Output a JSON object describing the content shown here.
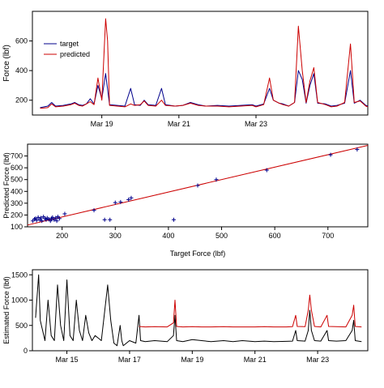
{
  "colors": {
    "target": "#00008b",
    "predicted": "#cc0000",
    "estimated": "#000000",
    "fit_line": "#cc0000",
    "axis": "#000000"
  },
  "chart_data": [
    {
      "type": "line",
      "ylabel": "Force (lbf)",
      "ylim": [
        100,
        800
      ],
      "yticks": [
        200,
        400,
        600
      ],
      "xlim": [
        17.2,
        25.9
      ],
      "xticks": [
        {
          "x": 19,
          "label": "Mar 19"
        },
        {
          "x": 21,
          "label": "Mar 21"
        },
        {
          "x": 23,
          "label": "Mar 23"
        }
      ],
      "legend": {
        "position": "top-left",
        "entries": [
          "target",
          "predicted"
        ]
      },
      "series": [
        {
          "name": "target",
          "color": "#00008b",
          "points": [
            [
              17.4,
              150
            ],
            [
              17.6,
              160
            ],
            [
              17.7,
              185
            ],
            [
              17.8,
              160
            ],
            [
              18.0,
              165
            ],
            [
              18.2,
              175
            ],
            [
              18.3,
              185
            ],
            [
              18.4,
              170
            ],
            [
              18.5,
              165
            ],
            [
              18.6,
              175
            ],
            [
              18.7,
              210
            ],
            [
              18.8,
              175
            ],
            [
              18.9,
              300
            ],
            [
              19.0,
              210
            ],
            [
              19.1,
              380
            ],
            [
              19.2,
              170
            ],
            [
              19.4,
              165
            ],
            [
              19.6,
              160
            ],
            [
              19.75,
              280
            ],
            [
              19.85,
              170
            ],
            [
              20.0,
              165
            ],
            [
              20.1,
              200
            ],
            [
              20.2,
              170
            ],
            [
              20.4,
              165
            ],
            [
              20.55,
              280
            ],
            [
              20.65,
              170
            ],
            [
              20.9,
              160
            ],
            [
              21.1,
              165
            ],
            [
              21.3,
              185
            ],
            [
              21.5,
              170
            ],
            [
              21.7,
              160
            ],
            [
              22.0,
              165
            ],
            [
              22.3,
              160
            ],
            [
              22.6,
              165
            ],
            [
              22.9,
              170
            ],
            [
              23.0,
              160
            ],
            [
              23.2,
              175
            ],
            [
              23.35,
              280
            ],
            [
              23.45,
              200
            ],
            [
              23.6,
              180
            ],
            [
              23.7,
              175
            ],
            [
              23.85,
              160
            ],
            [
              24.0,
              185
            ],
            [
              24.1,
              400
            ],
            [
              24.2,
              340
            ],
            [
              24.3,
              180
            ],
            [
              24.4,
              300
            ],
            [
              24.5,
              380
            ],
            [
              24.6,
              180
            ],
            [
              24.8,
              175
            ],
            [
              24.95,
              160
            ],
            [
              25.1,
              165
            ],
            [
              25.3,
              180
            ],
            [
              25.45,
              400
            ],
            [
              25.55,
              180
            ],
            [
              25.7,
              200
            ],
            [
              25.85,
              165
            ],
            [
              25.9,
              160
            ]
          ]
        },
        {
          "name": "predicted",
          "color": "#cc0000",
          "points": [
            [
              17.4,
              145
            ],
            [
              17.6,
              150
            ],
            [
              17.7,
              175
            ],
            [
              17.8,
              155
            ],
            [
              18.0,
              160
            ],
            [
              18.2,
              170
            ],
            [
              18.3,
              180
            ],
            [
              18.4,
              165
            ],
            [
              18.5,
              160
            ],
            [
              18.6,
              175
            ],
            [
              18.7,
              190
            ],
            [
              18.8,
              170
            ],
            [
              18.9,
              350
            ],
            [
              19.0,
              200
            ],
            [
              19.1,
              750
            ],
            [
              19.15,
              600
            ],
            [
              19.2,
              165
            ],
            [
              19.4,
              160
            ],
            [
              19.6,
              155
            ],
            [
              19.75,
              175
            ],
            [
              19.85,
              165
            ],
            [
              20.0,
              170
            ],
            [
              20.1,
              195
            ],
            [
              20.2,
              165
            ],
            [
              20.4,
              160
            ],
            [
              20.55,
              200
            ],
            [
              20.65,
              165
            ],
            [
              20.9,
              160
            ],
            [
              21.1,
              165
            ],
            [
              21.3,
              180
            ],
            [
              21.5,
              165
            ],
            [
              21.7,
              160
            ],
            [
              22.0,
              160
            ],
            [
              22.3,
              155
            ],
            [
              22.6,
              160
            ],
            [
              22.9,
              165
            ],
            [
              23.0,
              155
            ],
            [
              23.2,
              170
            ],
            [
              23.35,
              350
            ],
            [
              23.45,
              200
            ],
            [
              23.6,
              180
            ],
            [
              23.7,
              170
            ],
            [
              23.85,
              160
            ],
            [
              24.0,
              185
            ],
            [
              24.1,
              700
            ],
            [
              24.2,
              400
            ],
            [
              24.3,
              185
            ],
            [
              24.4,
              330
            ],
            [
              24.5,
              420
            ],
            [
              24.6,
              185
            ],
            [
              24.8,
              170
            ],
            [
              24.95,
              155
            ],
            [
              25.1,
              160
            ],
            [
              25.3,
              185
            ],
            [
              25.45,
              580
            ],
            [
              25.55,
              185
            ],
            [
              25.7,
              195
            ],
            [
              25.85,
              160
            ],
            [
              25.9,
              155
            ]
          ]
        }
      ]
    },
    {
      "type": "scatter",
      "xlabel": "Target Force (lbf)",
      "ylabel": "Predicted Force (lbf)",
      "xlim": [
        135,
        775
      ],
      "ylim": [
        100,
        800
      ],
      "xticks": [
        200,
        300,
        400,
        500,
        600,
        700
      ],
      "yticks": [
        100,
        200,
        300,
        400,
        500,
        600,
        700
      ],
      "fit_line": [
        [
          135,
          115
        ],
        [
          775,
          790
        ]
      ],
      "points": [
        [
          145,
          150
        ],
        [
          148,
          165
        ],
        [
          150,
          170
        ],
        [
          152,
          155
        ],
        [
          155,
          180
        ],
        [
          158,
          160
        ],
        [
          160,
          175
        ],
        [
          162,
          150
        ],
        [
          165,
          185
        ],
        [
          168,
          170
        ],
        [
          170,
          160
        ],
        [
          172,
          175
        ],
        [
          175,
          165
        ],
        [
          178,
          150
        ],
        [
          180,
          170
        ],
        [
          182,
          180
        ],
        [
          185,
          160
        ],
        [
          188,
          175
        ],
        [
          190,
          150
        ],
        [
          192,
          185
        ],
        [
          195,
          170
        ],
        [
          205,
          210
        ],
        [
          260,
          240
        ],
        [
          280,
          160
        ],
        [
          290,
          160
        ],
        [
          300,
          305
        ],
        [
          310,
          310
        ],
        [
          325,
          330
        ],
        [
          330,
          345
        ],
        [
          410,
          160
        ],
        [
          455,
          450
        ],
        [
          490,
          500
        ],
        [
          585,
          580
        ],
        [
          705,
          710
        ],
        [
          755,
          755
        ]
      ]
    },
    {
      "type": "line",
      "ylabel": "Estimated Force (lbf)",
      "ylim": [
        0,
        1600
      ],
      "yticks": [
        0,
        500,
        1000,
        1500
      ],
      "xlim": [
        13.9,
        24.6
      ],
      "xticks": [
        {
          "x": 15,
          "label": "Mar 15"
        },
        {
          "x": 17,
          "label": "Mar 17"
        },
        {
          "x": 19,
          "label": "Mar 19"
        },
        {
          "x": 21,
          "label": "Mar 21"
        },
        {
          "x": 23,
          "label": "Mar 23"
        }
      ],
      "series": [
        {
          "color": "#000000",
          "points": [
            [
              14.0,
              650
            ],
            [
              14.1,
              1500
            ],
            [
              14.15,
              600
            ],
            [
              14.3,
              200
            ],
            [
              14.4,
              1000
            ],
            [
              14.5,
              300
            ],
            [
              14.6,
              200
            ],
            [
              14.7,
              1300
            ],
            [
              14.8,
              500
            ],
            [
              14.9,
              200
            ],
            [
              15.0,
              1400
            ],
            [
              15.1,
              300
            ],
            [
              15.2,
              200
            ],
            [
              15.3,
              1000
            ],
            [
              15.4,
              400
            ],
            [
              15.5,
              200
            ],
            [
              15.6,
              700
            ],
            [
              15.7,
              350
            ],
            [
              15.8,
              200
            ],
            [
              15.9,
              300
            ],
            [
              16.0,
              250
            ],
            [
              16.1,
              200
            ],
            [
              16.3,
              1300
            ],
            [
              16.4,
              600
            ],
            [
              16.5,
              150
            ],
            [
              16.6,
              100
            ],
            [
              16.7,
              500
            ],
            [
              16.75,
              200
            ],
            [
              16.8,
              100
            ],
            [
              17.0,
              200
            ],
            [
              17.2,
              150
            ],
            [
              17.3,
              700
            ],
            [
              17.35,
              200
            ],
            [
              17.5,
              180
            ],
            [
              17.8,
              200
            ],
            [
              18.2,
              180
            ],
            [
              18.4,
              300
            ],
            [
              18.45,
              700
            ],
            [
              18.5,
              200
            ],
            [
              18.7,
              180
            ],
            [
              19.0,
              220
            ],
            [
              19.3,
              200
            ],
            [
              19.6,
              180
            ],
            [
              20.0,
              200
            ],
            [
              20.3,
              180
            ],
            [
              20.6,
              200
            ],
            [
              21.0,
              180
            ],
            [
              21.3,
              190
            ],
            [
              21.6,
              180
            ],
            [
              22.0,
              185
            ],
            [
              22.2,
              190
            ],
            [
              22.3,
              400
            ],
            [
              22.35,
              200
            ],
            [
              22.6,
              190
            ],
            [
              22.7,
              400
            ],
            [
              22.75,
              800
            ],
            [
              22.8,
              400
            ],
            [
              22.9,
              200
            ],
            [
              23.1,
              190
            ],
            [
              23.3,
              400
            ],
            [
              23.35,
              200
            ],
            [
              23.6,
              190
            ],
            [
              23.9,
              200
            ],
            [
              24.1,
              400
            ],
            [
              24.15,
              600
            ],
            [
              24.2,
              200
            ],
            [
              24.4,
              180
            ]
          ]
        },
        {
          "color": "#cc0000",
          "points": [
            [
              17.3,
              480
            ],
            [
              17.5,
              470
            ],
            [
              17.8,
              475
            ],
            [
              18.2,
              470
            ],
            [
              18.4,
              550
            ],
            [
              18.45,
              1000
            ],
            [
              18.5,
              480
            ],
            [
              18.7,
              470
            ],
            [
              19.0,
              475
            ],
            [
              19.3,
              470
            ],
            [
              19.6,
              470
            ],
            [
              20.0,
              475
            ],
            [
              20.3,
              470
            ],
            [
              20.6,
              470
            ],
            [
              21.0,
              470
            ],
            [
              21.3,
              475
            ],
            [
              21.6,
              470
            ],
            [
              22.0,
              470
            ],
            [
              22.2,
              475
            ],
            [
              22.3,
              700
            ],
            [
              22.35,
              480
            ],
            [
              22.6,
              475
            ],
            [
              22.7,
              800
            ],
            [
              22.75,
              1100
            ],
            [
              22.8,
              800
            ],
            [
              22.9,
              480
            ],
            [
              23.1,
              470
            ],
            [
              23.3,
              700
            ],
            [
              23.35,
              480
            ],
            [
              23.6,
              475
            ],
            [
              23.9,
              470
            ],
            [
              24.1,
              700
            ],
            [
              24.15,
              900
            ],
            [
              24.2,
              480
            ],
            [
              24.4,
              470
            ]
          ]
        }
      ]
    }
  ]
}
